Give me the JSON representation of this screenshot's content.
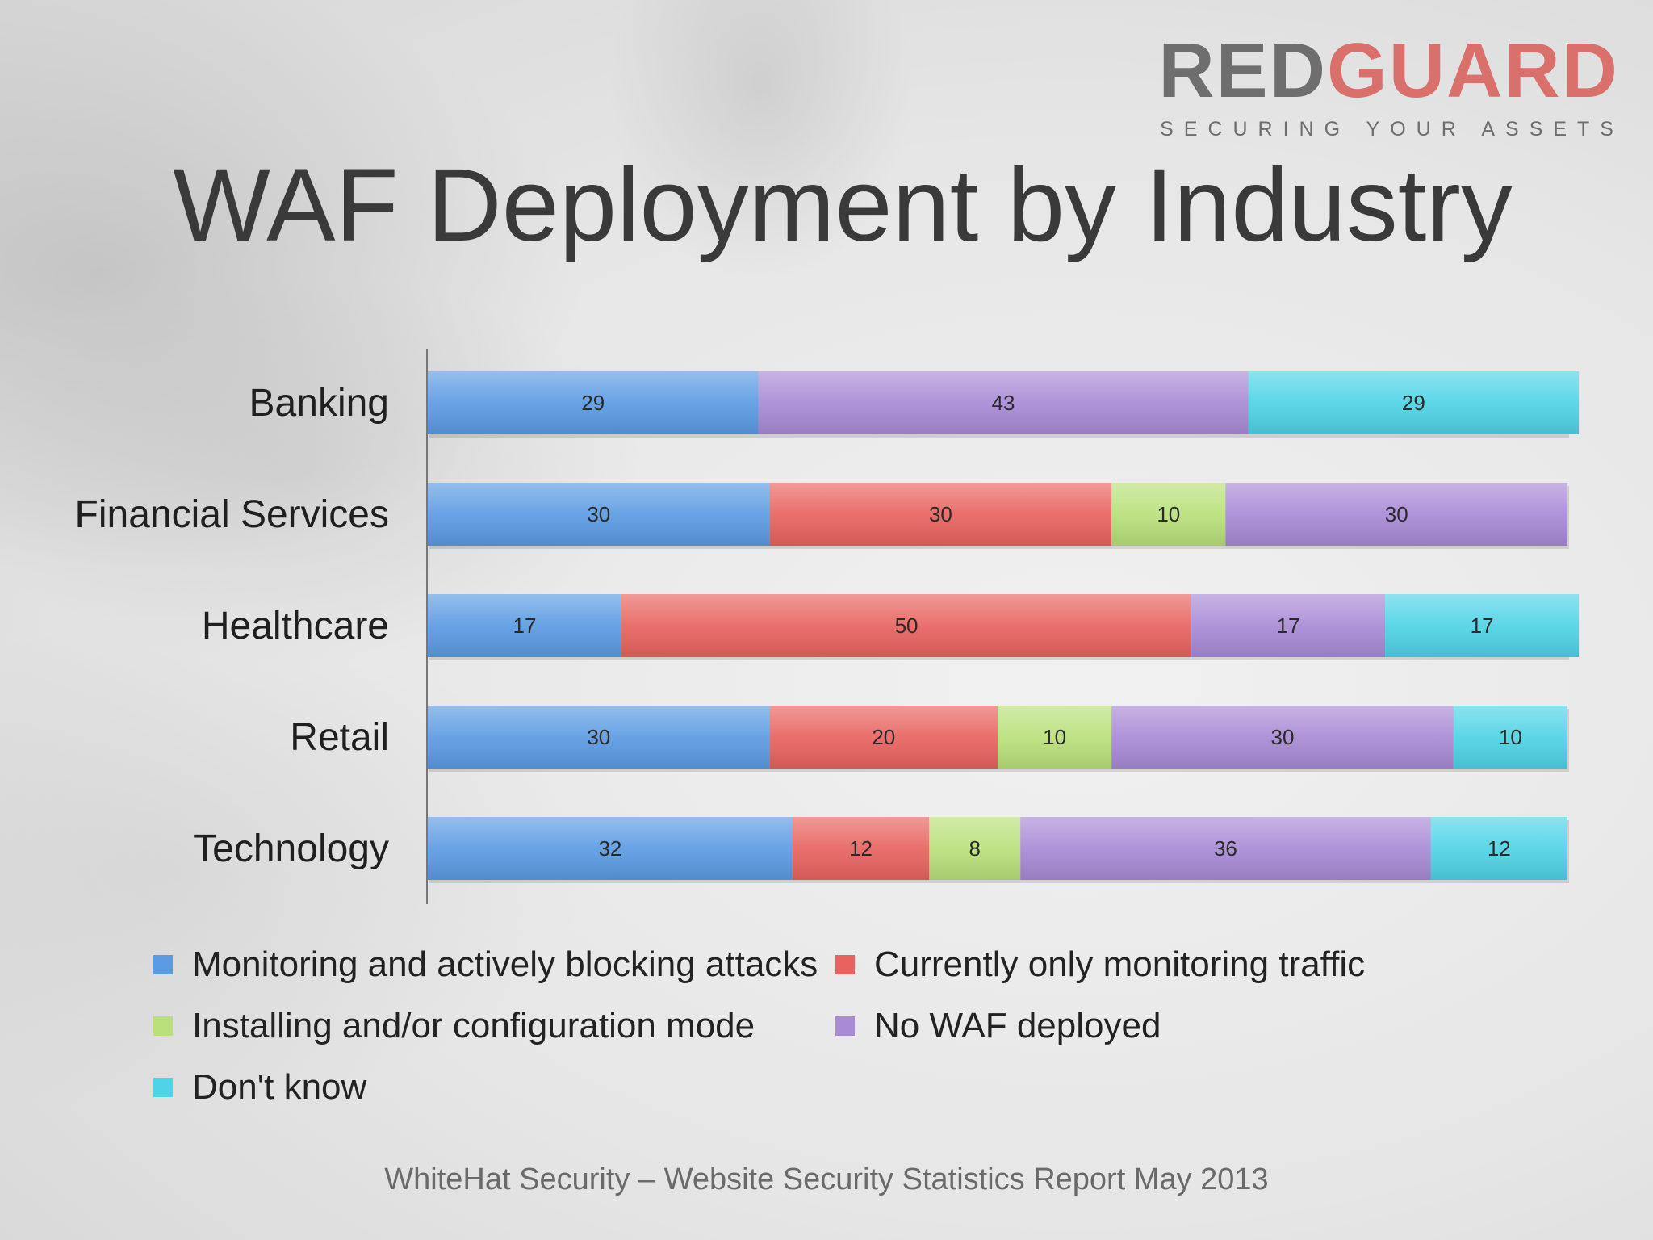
{
  "logo": {
    "word_part1": "RED",
    "word_part2": "GUARD",
    "tagline": "SECURING YOUR ASSETS"
  },
  "title": "WAF Deployment by Industry",
  "footer": "WhiteHat Security – Website Security Statistics Report May 2013",
  "chart_data": {
    "type": "bar",
    "orientation": "horizontal",
    "stacked": true,
    "title": "WAF Deployment by Industry",
    "categories": [
      "Banking",
      "Financial Services",
      "Healthcare",
      "Retail",
      "Technology"
    ],
    "series": [
      {
        "name": "Monitoring and actively blocking attacks",
        "color": "#5b9be3",
        "values": [
          29,
          30,
          17,
          30,
          32
        ]
      },
      {
        "name": "Currently only monitoring traffic",
        "color": "#e8635f",
        "values": [
          0,
          30,
          50,
          20,
          12
        ]
      },
      {
        "name": "Installing and/or configuration mode",
        "color": "#b9e07a",
        "values": [
          0,
          10,
          0,
          10,
          8
        ]
      },
      {
        "name": "No WAF deployed",
        "color": "#a98ad6",
        "values": [
          43,
          30,
          17,
          30,
          36
        ]
      },
      {
        "name": "Don't know",
        "color": "#4fd3e6",
        "values": [
          29,
          0,
          17,
          10,
          12
        ]
      }
    ],
    "xlim": [
      0,
      100
    ],
    "grid": false,
    "legend_position": "bottom"
  }
}
